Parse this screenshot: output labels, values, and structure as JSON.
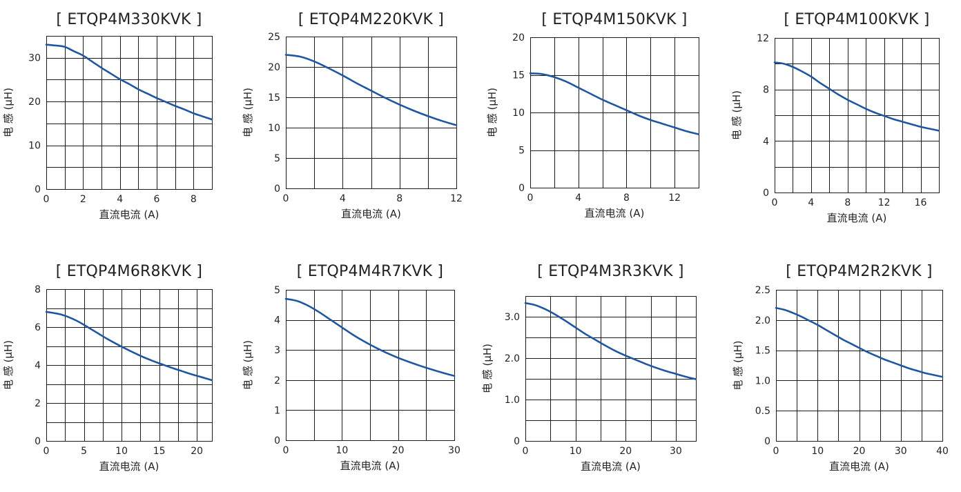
{
  "chart_data": [
    {
      "type": "line",
      "title": "[ ETQP4M330KVK ]",
      "xlabel": "直流电流 (A)",
      "ylabel": "电 感 (μH)",
      "xlim": [
        0,
        9
      ],
      "ylim": [
        0,
        35
      ],
      "xticks": [
        0,
        2,
        4,
        6,
        8
      ],
      "xtick_labels": [
        "0",
        "2",
        "4",
        "6",
        "8"
      ],
      "yticks": [
        0,
        10,
        20,
        30
      ],
      "ytick_labels": [
        "0",
        "10",
        "20",
        "30"
      ],
      "x_grid": [
        1,
        2,
        3,
        4,
        5,
        6,
        7,
        8
      ],
      "y_grid": [
        5,
        10,
        15,
        20,
        25,
        30
      ],
      "grid": true,
      "series": [
        {
          "x": [
            0,
            0.5,
            1,
            1.5,
            2,
            2.5,
            3,
            3.5,
            4,
            4.5,
            5,
            5.5,
            6,
            6.5,
            7,
            7.5,
            8,
            8.5,
            9
          ],
          "y": [
            33.0,
            32.8,
            32.5,
            31.5,
            30.5,
            29.1,
            27.7,
            26.4,
            25.1,
            24.0,
            22.8,
            21.8,
            20.8,
            19.9,
            19.0,
            18.2,
            17.3,
            16.6,
            15.9
          ],
          "color": "#1f56a2"
        }
      ]
    },
    {
      "type": "line",
      "title": "[ ETQP4M220KVK ]",
      "xlabel": "直流电流 (A)",
      "ylabel": "电 感 (μH)",
      "xlim": [
        0,
        12
      ],
      "ylim": [
        0,
        25
      ],
      "xticks": [
        0,
        4,
        8,
        12
      ],
      "xtick_labels": [
        "0",
        "4",
        "8",
        "12"
      ],
      "yticks": [
        0,
        5,
        10,
        15,
        20,
        25
      ],
      "ytick_labels": [
        "0",
        "5",
        "10",
        "15",
        "20",
        "25"
      ],
      "x_grid": [
        2,
        4,
        6,
        8,
        10
      ],
      "y_grid": [
        5,
        10,
        15,
        20
      ],
      "grid": true,
      "series": [
        {
          "x": [
            0,
            1,
            2,
            3,
            4,
            5,
            6,
            7,
            8,
            9,
            10,
            11,
            12
          ],
          "y": [
            22.0,
            21.7,
            20.9,
            19.8,
            18.6,
            17.3,
            16.1,
            14.9,
            13.8,
            12.8,
            11.9,
            11.1,
            10.4
          ],
          "color": "#1f56a2"
        }
      ]
    },
    {
      "type": "line",
      "title": "[ ETQP4M150KVK ]",
      "xlabel": "直流电流 (A)",
      "ylabel": "电 感 (μH)",
      "xlim": [
        0,
        14
      ],
      "ylim": [
        0,
        20
      ],
      "xticks": [
        0,
        4,
        8,
        12
      ],
      "xtick_labels": [
        "0",
        "4",
        "8",
        "12"
      ],
      "yticks": [
        0,
        5,
        10,
        15,
        20
      ],
      "ytick_labels": [
        "0",
        "5",
        "10",
        "15",
        "20"
      ],
      "x_grid": [
        2,
        4,
        6,
        8,
        10,
        12
      ],
      "y_grid": [
        5,
        10,
        15
      ],
      "grid": true,
      "series": [
        {
          "x": [
            0,
            1,
            2,
            3,
            4,
            5,
            6,
            7,
            8,
            9,
            10,
            11,
            12,
            13,
            14
          ],
          "y": [
            15.2,
            15.1,
            14.7,
            14.1,
            13.3,
            12.5,
            11.7,
            11.0,
            10.3,
            9.6,
            9.0,
            8.5,
            8.0,
            7.5,
            7.1
          ],
          "color": "#1f56a2"
        }
      ]
    },
    {
      "type": "line",
      "title": "[ ETQP4M100KVK ]",
      "xlabel": "直流电流 (A)",
      "ylabel": "电 感 (μH)",
      "xlim": [
        0,
        18
      ],
      "ylim": [
        0,
        12
      ],
      "xticks": [
        0,
        4,
        8,
        12,
        16
      ],
      "xtick_labels": [
        "0",
        "4",
        "8",
        "12",
        "16"
      ],
      "yticks": [
        0,
        4,
        8,
        12
      ],
      "ytick_labels": [
        "0",
        "4",
        "8",
        "12"
      ],
      "x_grid": [
        2,
        4,
        6,
        8,
        10,
        12,
        14,
        16
      ],
      "y_grid": [
        2,
        4,
        6,
        8,
        10
      ],
      "grid": true,
      "series": [
        {
          "x": [
            0,
            1,
            2,
            3,
            4,
            5,
            6,
            7,
            8,
            9,
            10,
            11,
            12,
            13,
            14,
            15,
            16,
            17,
            18
          ],
          "y": [
            10.1,
            10.0,
            9.75,
            9.4,
            9.0,
            8.5,
            8.05,
            7.6,
            7.2,
            6.85,
            6.5,
            6.2,
            5.95,
            5.7,
            5.5,
            5.3,
            5.1,
            4.95,
            4.8
          ],
          "color": "#1f56a2"
        }
      ]
    },
    {
      "type": "line",
      "title": "[ ETQP4M6R8KVK ]",
      "xlabel": "直流电流 (A)",
      "ylabel": "电 感 (μH)",
      "xlim": [
        0,
        22
      ],
      "ylim": [
        0,
        8
      ],
      "xticks": [
        0,
        5,
        10,
        15,
        20
      ],
      "xtick_labels": [
        "0",
        "5",
        "10",
        "15",
        "20"
      ],
      "yticks": [
        0,
        2,
        4,
        6,
        8
      ],
      "ytick_labels": [
        "0",
        "2",
        "4",
        "6",
        "8"
      ],
      "x_grid": [
        2.5,
        5,
        7.5,
        10,
        12.5,
        15,
        17.5,
        20
      ],
      "y_grid": [
        1,
        2,
        3,
        4,
        5,
        6,
        7
      ],
      "grid": true,
      "series": [
        {
          "x": [
            0,
            1,
            2,
            3,
            4,
            5,
            6,
            7,
            8,
            9,
            10,
            11,
            12,
            13,
            14,
            15,
            16,
            17,
            18,
            19,
            20,
            21,
            22
          ],
          "y": [
            6.8,
            6.74,
            6.66,
            6.52,
            6.34,
            6.12,
            5.88,
            5.64,
            5.4,
            5.18,
            4.97,
            4.77,
            4.58,
            4.4,
            4.24,
            4.09,
            3.95,
            3.81,
            3.68,
            3.55,
            3.43,
            3.32,
            3.2
          ],
          "color": "#1f56a2"
        }
      ]
    },
    {
      "type": "line",
      "title": "[ ETQP4M4R7KVK ]",
      "xlabel": "直流电流 (A)",
      "ylabel": "电 感 (μH)",
      "xlim": [
        0,
        30
      ],
      "ylim": [
        0,
        5
      ],
      "xticks": [
        0,
        10,
        20,
        30
      ],
      "xtick_labels": [
        "0",
        "10",
        "20",
        "30"
      ],
      "yticks": [
        0,
        1,
        2,
        3,
        4,
        5
      ],
      "ytick_labels": [
        "0",
        "1",
        "2",
        "3",
        "4",
        "5"
      ],
      "x_grid": [
        5,
        10,
        15,
        20,
        25
      ],
      "y_grid": [
        1,
        2,
        3,
        4
      ],
      "grid": true,
      "series": [
        {
          "x": [
            0,
            2,
            4,
            6,
            8,
            10,
            12,
            14,
            16,
            18,
            20,
            22,
            24,
            26,
            28,
            30
          ],
          "y": [
            4.7,
            4.63,
            4.47,
            4.25,
            4.0,
            3.75,
            3.5,
            3.28,
            3.08,
            2.9,
            2.74,
            2.6,
            2.47,
            2.35,
            2.24,
            2.14
          ],
          "color": "#1f56a2"
        }
      ]
    },
    {
      "type": "line",
      "title": "[ ETQP4M3R3KVK ]",
      "xlabel": "直流电流 (A)",
      "ylabel": "电 感 (μH)",
      "xlim": [
        0,
        34
      ],
      "ylim": [
        0,
        3.5
      ],
      "xticks": [
        0,
        10,
        20,
        30
      ],
      "xtick_labels": [
        "0",
        "10",
        "20",
        "30"
      ],
      "yticks": [
        0,
        1.0,
        2.0,
        3.0
      ],
      "ytick_labels": [
        "0",
        "1.0",
        "2.0",
        "3.0"
      ],
      "x_grid": [
        5,
        10,
        15,
        20,
        25,
        30
      ],
      "y_grid": [
        0.5,
        1.0,
        1.5,
        2.0,
        2.5,
        3.0
      ],
      "grid": true,
      "series": [
        {
          "x": [
            0,
            2,
            4,
            6,
            8,
            10,
            12,
            14,
            16,
            18,
            20,
            22,
            24,
            26,
            28,
            30,
            32,
            34
          ],
          "y": [
            3.33,
            3.28,
            3.18,
            3.05,
            2.9,
            2.74,
            2.58,
            2.44,
            2.3,
            2.17,
            2.06,
            1.96,
            1.86,
            1.77,
            1.69,
            1.62,
            1.55,
            1.49
          ],
          "color": "#1f56a2"
        }
      ]
    },
    {
      "type": "line",
      "title": "[ ETQP4M2R2KVK ]",
      "xlabel": "直流电流 (A)",
      "ylabel": "电 感 (μH)",
      "xlim": [
        0,
        40
      ],
      "ylim": [
        0,
        2.5
      ],
      "xticks": [
        0,
        10,
        20,
        30,
        40
      ],
      "xtick_labels": [
        "0",
        "10",
        "20",
        "30",
        "40"
      ],
      "yticks": [
        0,
        0.5,
        1.0,
        1.5,
        2.0,
        2.5
      ],
      "ytick_labels": [
        "0",
        "0.5",
        "1.0",
        "1.5",
        "2.0",
        "2.5"
      ],
      "x_grid": [
        5,
        10,
        15,
        20,
        25,
        30,
        35
      ],
      "y_grid": [
        0.5,
        1.0,
        1.5,
        2.0
      ],
      "grid": true,
      "series": [
        {
          "x": [
            0,
            2,
            4,
            6,
            8,
            10,
            12,
            14,
            16,
            18,
            20,
            22,
            24,
            26,
            28,
            30,
            32,
            34,
            36,
            38,
            40
          ],
          "y": [
            2.2,
            2.17,
            2.12,
            2.06,
            1.99,
            1.92,
            1.84,
            1.76,
            1.68,
            1.61,
            1.54,
            1.47,
            1.41,
            1.35,
            1.3,
            1.25,
            1.2,
            1.16,
            1.12,
            1.09,
            1.06
          ],
          "color": "#1f56a2"
        }
      ]
    }
  ]
}
